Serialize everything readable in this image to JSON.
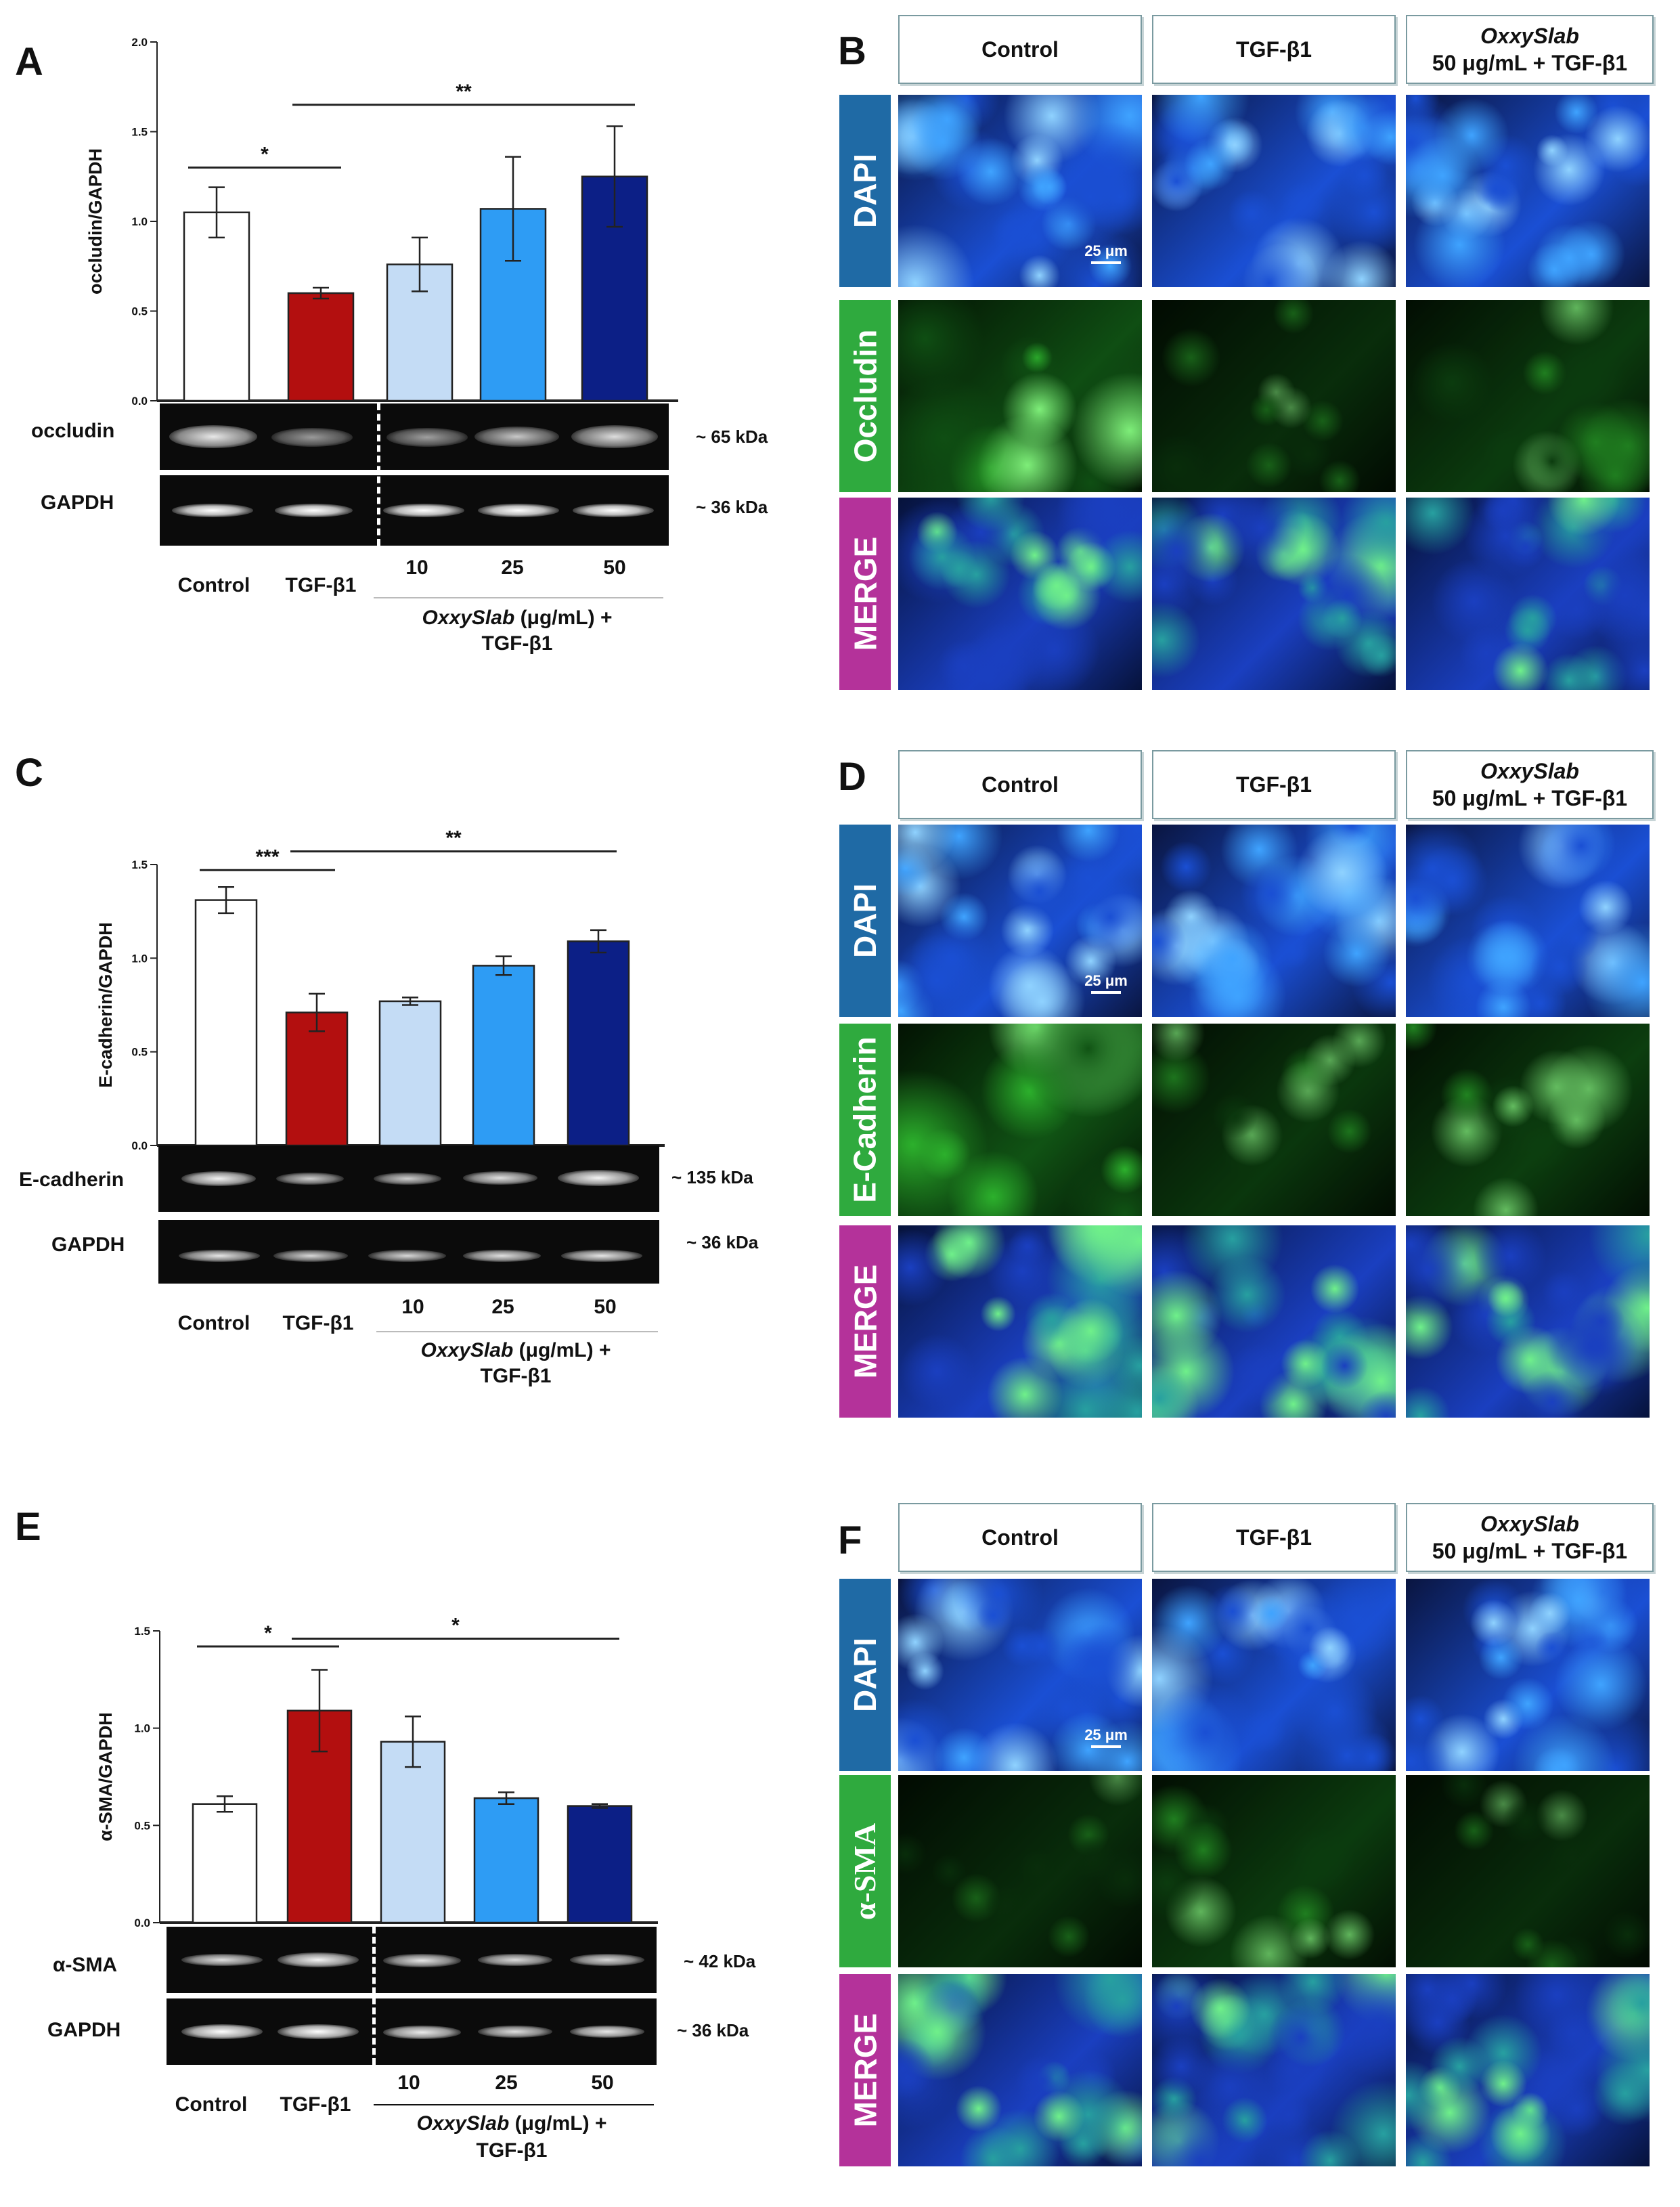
{
  "panels": {
    "A": {
      "letter": "A"
    },
    "B": {
      "letter": "B"
    },
    "C": {
      "letter": "C"
    },
    "D": {
      "letter": "D"
    },
    "E": {
      "letter": "E"
    },
    "F": {
      "letter": "F"
    }
  },
  "chart_data": [
    {
      "panel": "A",
      "type": "bar",
      "ylabel": "occludin/GAPDH",
      "ylim": [
        0,
        2.0
      ],
      "yticks": [
        "0.0",
        "0.5",
        "1.0",
        "1.5",
        "2.0"
      ],
      "yticks_values": [
        0,
        0.5,
        1.0,
        1.5,
        2.0
      ],
      "categories": [
        "Control",
        "TGF-β1",
        "10",
        "25",
        "50"
      ],
      "values": [
        1.05,
        0.6,
        0.76,
        1.07,
        1.25
      ],
      "errors": [
        0.14,
        0.03,
        0.15,
        0.29,
        0.28
      ],
      "colors": [
        "#ffffff",
        "#b30f0f",
        "#c4dcf5",
        "#2e9cf4",
        "#0c1f86"
      ],
      "significance": [
        {
          "from": 0,
          "to": 1,
          "label": "*",
          "y": 1.3
        },
        {
          "from": 1,
          "to": 4,
          "label": "**",
          "y": 1.65
        }
      ]
    },
    {
      "panel": "C",
      "type": "bar",
      "ylabel": "E-cadherin/GAPDH",
      "ylim": [
        0,
        1.5
      ],
      "yticks": [
        "0.0",
        "0.5",
        "1.0",
        "1.5"
      ],
      "yticks_values": [
        0,
        0.5,
        1.0,
        1.5
      ],
      "categories": [
        "Control",
        "TGF-β1",
        "10",
        "25",
        "50"
      ],
      "values": [
        1.31,
        0.71,
        0.77,
        0.96,
        1.09
      ],
      "errors": [
        0.07,
        0.1,
        0.02,
        0.05,
        0.06
      ],
      "colors": [
        "#ffffff",
        "#b30f0f",
        "#c4dcf5",
        "#2e9cf4",
        "#0c1f86"
      ],
      "significance": [
        {
          "from": 0,
          "to": 1,
          "label": "***",
          "y": 1.47
        },
        {
          "from": 1,
          "to": 4,
          "label": "**",
          "y": 1.57
        }
      ]
    },
    {
      "panel": "E",
      "type": "bar",
      "ylabel": "α-SMA/GAPDH",
      "ylim": [
        0,
        1.5
      ],
      "yticks": [
        "0.0",
        "0.5",
        "1.0",
        "1.5"
      ],
      "yticks_values": [
        0,
        0.5,
        1.0,
        1.5
      ],
      "categories": [
        "Control",
        "TGF-β1",
        "10",
        "25",
        "50"
      ],
      "values": [
        0.61,
        1.09,
        0.93,
        0.64,
        0.6
      ],
      "errors": [
        0.04,
        0.21,
        0.13,
        0.03,
        0.01
      ],
      "colors": [
        "#ffffff",
        "#b30f0f",
        "#c4dcf5",
        "#2e9cf4",
        "#0c1f86"
      ],
      "significance": [
        {
          "from": 0,
          "to": 1,
          "label": "*",
          "y": 1.42
        },
        {
          "from": 1,
          "to": 4,
          "label": "*",
          "y": 1.46
        }
      ]
    }
  ],
  "blots": {
    "A": {
      "target": "occludin",
      "target_kda": "~ 65 kDa",
      "loading": "GAPDH",
      "loading_kda": "~ 36 kDa"
    },
    "C": {
      "target": "E-cadherin",
      "target_kda": "~ 135 kDa",
      "loading": "GAPDH",
      "loading_kda": "~ 36 kDa"
    },
    "E": {
      "target": "α-SMA",
      "target_kda": "~ 42 kDa",
      "loading": "GAPDH",
      "loading_kda": "~ 36 kDa"
    }
  },
  "xgroups": {
    "control": "Control",
    "tgf": "TGF-β1",
    "doses": [
      "10",
      "25",
      "50"
    ],
    "oxy_name": "OxxySlab",
    "oxy_unit": " (μg/mL) +",
    "oxy_tgf": "TGF-β1"
  },
  "micro": {
    "headers": {
      "control": "Control",
      "tgf": "TGF-β1",
      "oxy_name": "OxxySlab",
      "oxy_dose": "50 μg/mL + TGF-β1"
    },
    "scale": "25 μm",
    "rows": {
      "B": [
        "DAPI",
        "Occludin",
        "MERGE"
      ],
      "D": [
        "DAPI",
        "E-Cadherin",
        "MERGE"
      ],
      "F": [
        "DAPI",
        "α-SMA",
        "MERGE"
      ]
    },
    "label_colors": {
      "dapi": "#1f6aa5",
      "marker": "#2faa3e",
      "merge": "#b4329a"
    }
  }
}
